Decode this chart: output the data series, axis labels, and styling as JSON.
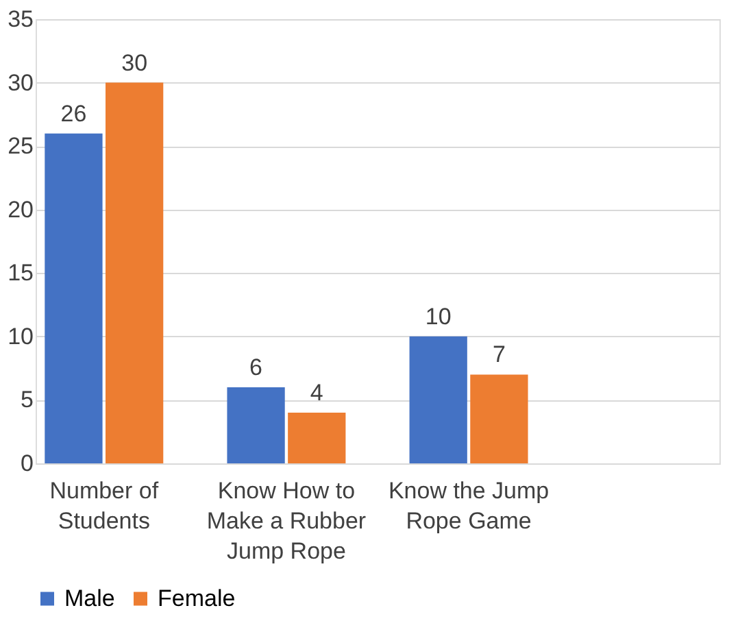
{
  "chart_data": {
    "type": "bar",
    "categories": [
      "Number of Students",
      "Know How to Make a Rubber Jump Rope",
      "Know the Jump Rope Game",
      null
    ],
    "series": [
      {
        "name": "Male",
        "color": "#4472c4",
        "values": [
          26,
          6,
          10,
          null
        ]
      },
      {
        "name": "Female",
        "color": "#ed7d31",
        "values": [
          30,
          4,
          7,
          null
        ]
      }
    ],
    "ylim": [
      0,
      35
    ],
    "yticks": [
      0,
      5,
      10,
      15,
      20,
      25,
      30,
      35
    ],
    "grid": "y",
    "legend": "bottom",
    "data_labels": true
  }
}
